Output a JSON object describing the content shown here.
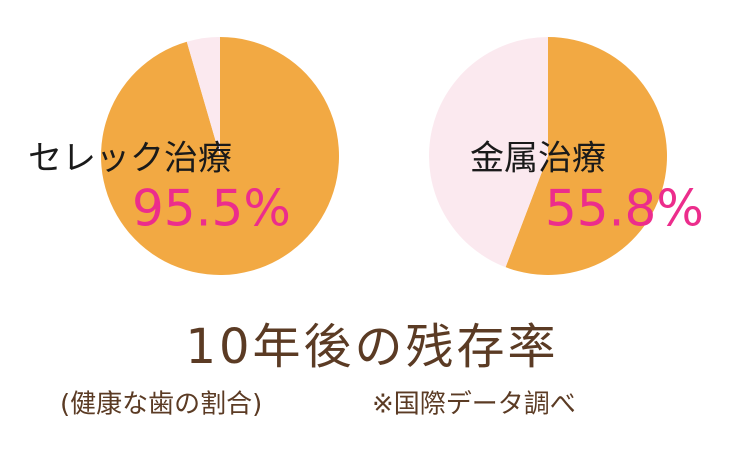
{
  "chart_data": [
    {
      "type": "pie",
      "label": "セレック治療",
      "values": [
        95.5,
        4.5
      ],
      "value_labels": [
        "95.5%",
        null
      ],
      "colors": [
        "#f2a943",
        "#fbe9ef"
      ]
    },
    {
      "type": "pie",
      "label": "金属治療",
      "values": [
        55.8,
        44.2
      ],
      "value_labels": [
        "55.8%",
        null
      ],
      "colors": [
        "#f2a943",
        "#fbe9ef"
      ]
    }
  ],
  "title": "10年後の残存率",
  "note": "(健康な歯の割合)",
  "source": "※国際データ調べ"
}
